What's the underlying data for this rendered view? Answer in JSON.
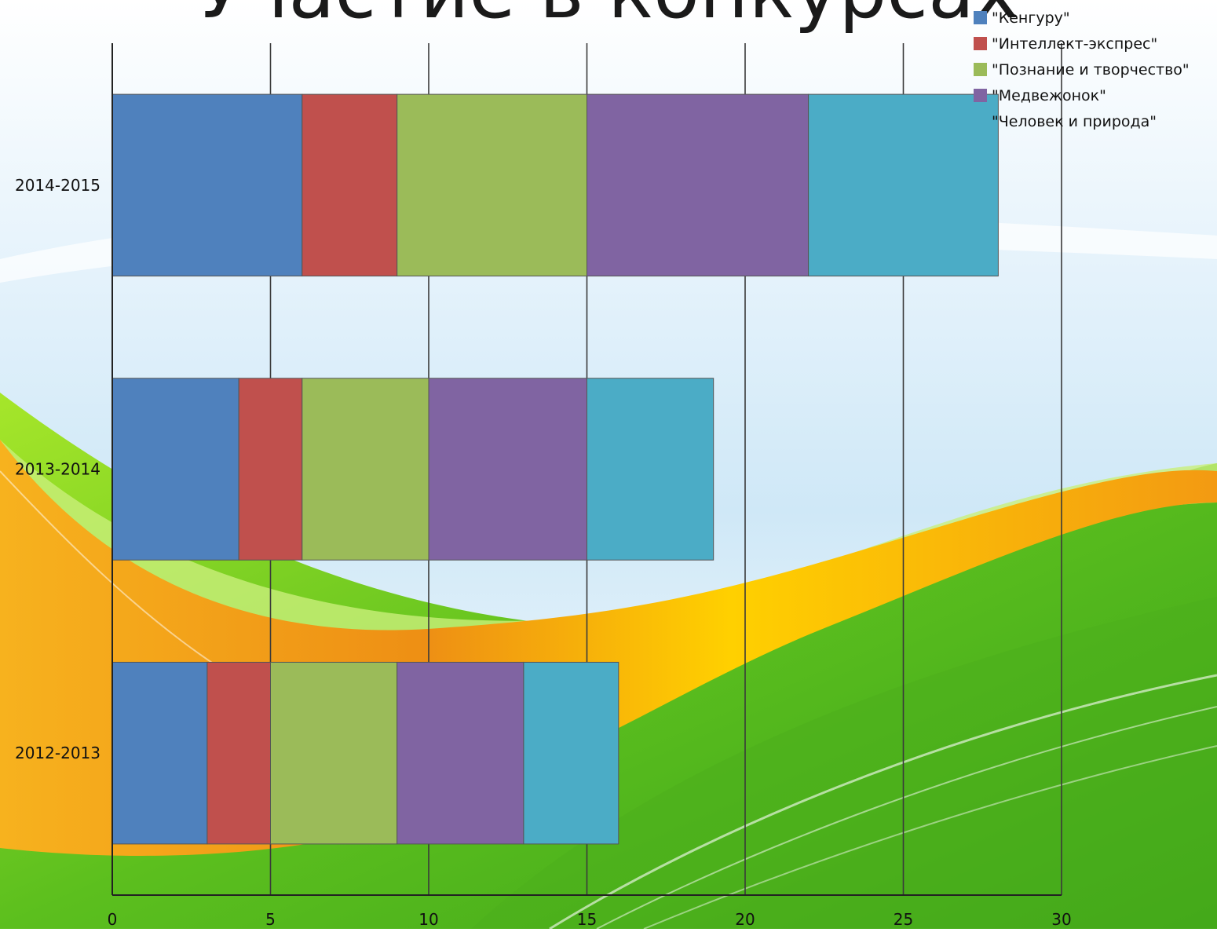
{
  "slide": {
    "title": "Участие в конкурсах"
  },
  "colors": {
    "series": [
      "#4F81BD",
      "#C0504D",
      "#9BBB59",
      "#8064A2",
      "#4BACC6"
    ],
    "background_sky": "#d6ecf8",
    "wave_orange": "#f5a318",
    "wave_yellow": "#ffd400",
    "wave_green": "#5cbf1e"
  },
  "chart_data": {
    "type": "bar",
    "orientation": "horizontal",
    "stacked": true,
    "title": "Участие в конкурсах",
    "xlabel": "",
    "ylabel": "",
    "xlim": [
      0,
      30
    ],
    "x_ticks": [
      "0",
      "5",
      "10",
      "15",
      "20",
      "25",
      "30"
    ],
    "categories": [
      "2014-2015",
      "2013-2014",
      "2012-2013"
    ],
    "series": [
      {
        "name": "\"Кенгуру\"",
        "values": [
          6,
          4,
          3
        ]
      },
      {
        "name": "\"Интеллект-экспрес\"",
        "values": [
          3,
          2,
          2
        ]
      },
      {
        "name": "\"Познание и творчество\"",
        "values": [
          6,
          4,
          4
        ]
      },
      {
        "name": "\"Медвежонок\"",
        "values": [
          7,
          5,
          4
        ]
      },
      {
        "name": "\"Человек и природа\"",
        "values": [
          6,
          4,
          3
        ]
      }
    ],
    "grid": true,
    "legend": "top-right"
  }
}
